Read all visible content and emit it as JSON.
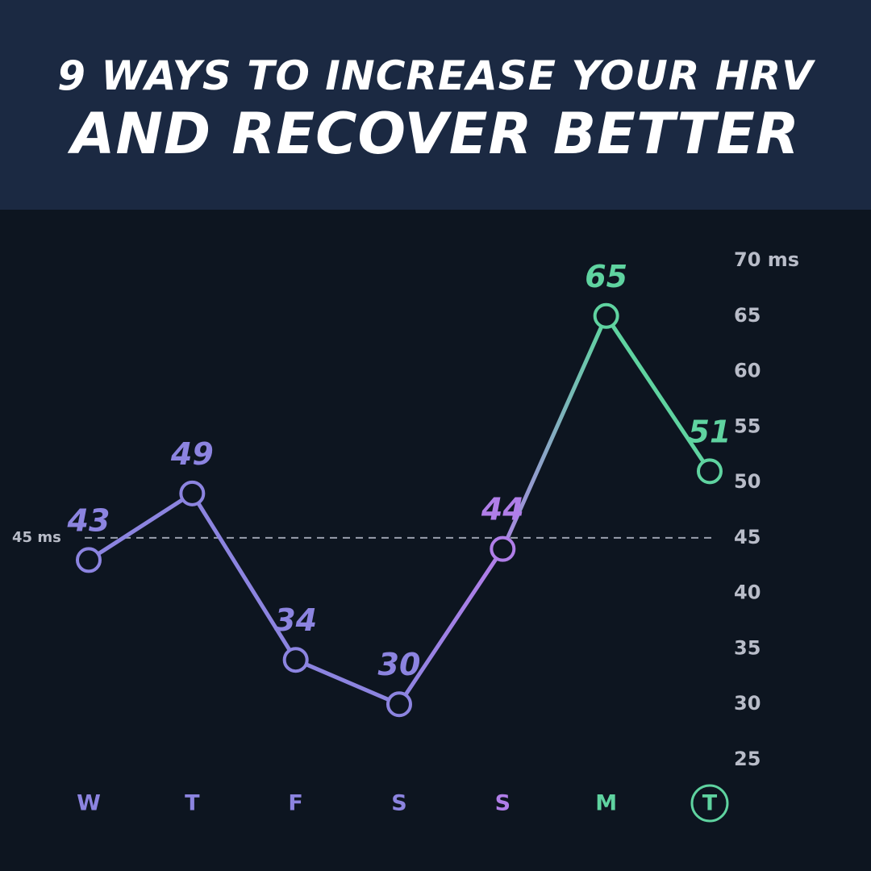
{
  "header": {
    "title_line1": "9 WAYS TO INCREASE YOUR HRV",
    "title_line2": "AND RECOVER BETTER"
  },
  "colors": {
    "header_bg": "#1b2942",
    "chart_bg": "#0d1520",
    "purple": "#8c84e0",
    "violet": "#b07ee8",
    "green": "#5fd3a0",
    "axis_text": "#b8bcc8",
    "reference_line": "#9aa0ad"
  },
  "chart_data": {
    "type": "line",
    "categories": [
      "W",
      "T",
      "F",
      "S",
      "S",
      "M",
      "T"
    ],
    "values": [
      43,
      49,
      34,
      30,
      44,
      65,
      51
    ],
    "data_labels": [
      "43",
      "49",
      "34",
      "30",
      "44",
      "65",
      "51"
    ],
    "y_ticks": [
      "70 ms",
      "65",
      "60",
      "55",
      "50",
      "45",
      "40",
      "35",
      "30",
      "25"
    ],
    "y_tick_values": [
      70,
      65,
      60,
      55,
      50,
      45,
      40,
      35,
      30,
      25
    ],
    "ylim": [
      25,
      70
    ],
    "y_axis_position": "right",
    "reference_line": {
      "value": 45,
      "label": "45 ms"
    },
    "highlighted_category_index": 6,
    "grid": false
  }
}
